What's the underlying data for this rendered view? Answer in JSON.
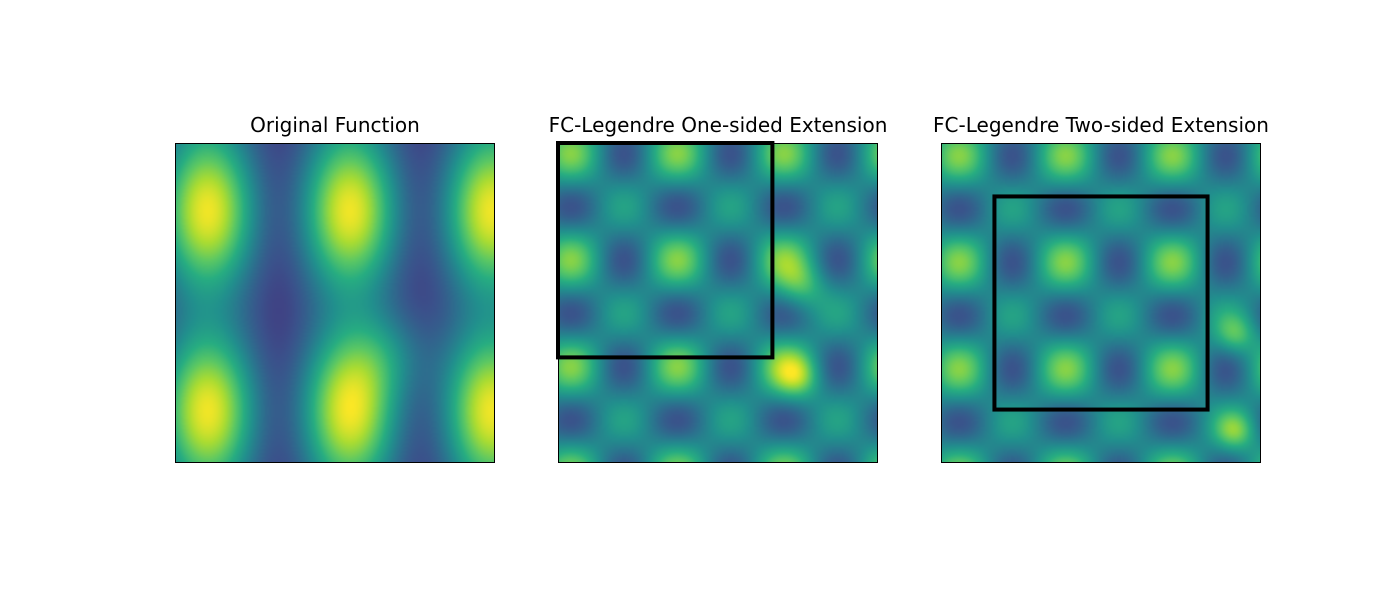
{
  "chart_data": [
    {
      "type": "heatmap",
      "title": "Original Function",
      "colormap": "viridis",
      "xticks": [],
      "yticks": [],
      "overlay_box": null
    },
    {
      "type": "heatmap",
      "title": "FC-Legendre One-sided Extension",
      "colormap": "viridis",
      "xticks": [],
      "yticks": [],
      "overlay_box": {
        "x_fraction": [
          0,
          0.67
        ],
        "y_fraction_from_top": [
          0,
          0.67
        ],
        "color": "#000000"
      }
    },
    {
      "type": "heatmap",
      "title": "FC-Legendre Two-sided Extension",
      "colormap": "viridis",
      "xticks": [],
      "yticks": [],
      "overlay_box": {
        "x_fraction": [
          0.167,
          0.833
        ],
        "y_fraction_from_top": [
          0.167,
          0.833
        ],
        "color": "#000000"
      }
    }
  ]
}
